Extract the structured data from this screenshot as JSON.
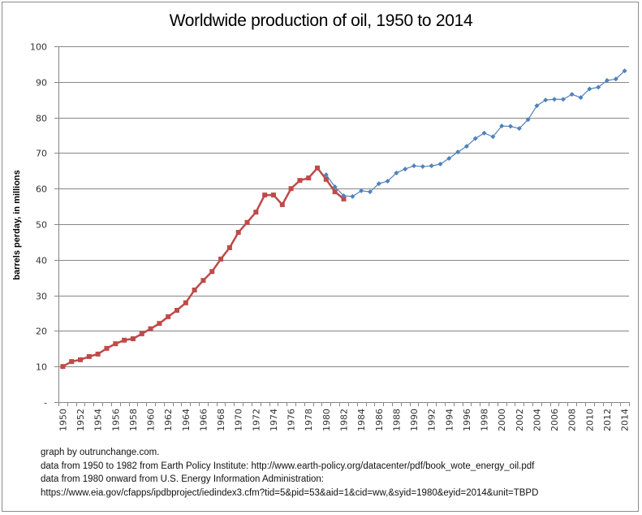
{
  "chart_data": {
    "type": "line",
    "title": "Worldwide production of oil, 1950 to 2014",
    "xlabel": "",
    "ylabel": "barrels perday, in millions",
    "ylim": [
      0,
      100
    ],
    "y_ticks": [
      "-",
      "10",
      "20",
      "30",
      "40",
      "50",
      "60",
      "70",
      "80",
      "90",
      "100"
    ],
    "y_tick_values": [
      0,
      10,
      20,
      30,
      40,
      50,
      60,
      70,
      80,
      90,
      100
    ],
    "grid": true,
    "legend": "none",
    "categories": [
      "1950",
      "1951",
      "1952",
      "1953",
      "1954",
      "1955",
      "1956",
      "1957",
      "1958",
      "1959",
      "1960",
      "1961",
      "1962",
      "1963",
      "1964",
      "1965",
      "1966",
      "1967",
      "1968",
      "1969",
      "1970",
      "1971",
      "1972",
      "1973",
      "1974",
      "1975",
      "1976",
      "1977",
      "1978",
      "1979",
      "1980",
      "1981",
      "1982",
      "1983",
      "1984",
      "1985",
      "1986",
      "1987",
      "1988",
      "1989",
      "1990",
      "1991",
      "1992",
      "1993",
      "1994",
      "1995",
      "1996",
      "1997",
      "1998",
      "1999",
      "2000",
      "2001",
      "2002",
      "2003",
      "2004",
      "2005",
      "2006",
      "2007",
      "2008",
      "2009",
      "2010",
      "2011",
      "2012",
      "2013",
      "2014"
    ],
    "x_tick_labels": [
      "1950",
      "1952",
      "1954",
      "1956",
      "1958",
      "1960",
      "1962",
      "1964",
      "1966",
      "1968",
      "1970",
      "1972",
      "1974",
      "1976",
      "1978",
      "1980",
      "1982",
      "1984",
      "1986",
      "1988",
      "1990",
      "1992",
      "1994",
      "1996",
      "1998",
      "2000",
      "2002",
      "2004",
      "2006",
      "2008",
      "2010",
      "2012",
      "2014"
    ],
    "series": [
      {
        "name": "Earth Policy Institute",
        "color": "#BE4B48",
        "marker": "square",
        "start_year": 1950,
        "values": [
          10.0,
          11.4,
          11.9,
          12.8,
          13.5,
          15.1,
          16.4,
          17.4,
          17.8,
          19.2,
          20.6,
          22.1,
          24.0,
          25.8,
          27.9,
          31.5,
          34.2,
          36.7,
          40.2,
          43.4,
          47.7,
          50.5,
          53.4,
          58.2,
          58.2,
          55.5,
          60.0,
          62.3,
          63.0,
          65.8,
          62.6,
          59.1,
          57.1
        ]
      },
      {
        "name": "U.S. Energy Information Administration",
        "color": "#4F81BD",
        "marker": "diamond",
        "start_year": 1980,
        "values": [
          63.9,
          60.5,
          58.0,
          57.8,
          59.4,
          59.1,
          61.4,
          62.1,
          64.4,
          65.5,
          66.4,
          66.2,
          66.4,
          66.9,
          68.5,
          70.3,
          71.9,
          74.1,
          75.6,
          74.6,
          77.6,
          77.5,
          76.9,
          79.4,
          83.3,
          84.9,
          85.1,
          85.1,
          86.5,
          85.6,
          88.0,
          88.5,
          90.4,
          90.8,
          93.1
        ]
      }
    ],
    "colors": {
      "gridline": "#868686",
      "axis": "#868686"
    }
  },
  "footer": {
    "lines": [
      "graph by outrunchange.com.",
      "data from 1950 to 1982 from Earth  Policy Institute:  http://www.earth-policy.org/datacenter/pdf/book_wote_energy_oil.pdf",
      "data from 1980 onward from U.S. Energy Information  Administration:",
      "https://www.eia.gov/cfapps/ipdbproject/iedindex3.cfm?tid=5&pid=53&aid=1&cid=ww,&syid=1980&eyid=2014&unit=TBPD"
    ]
  }
}
